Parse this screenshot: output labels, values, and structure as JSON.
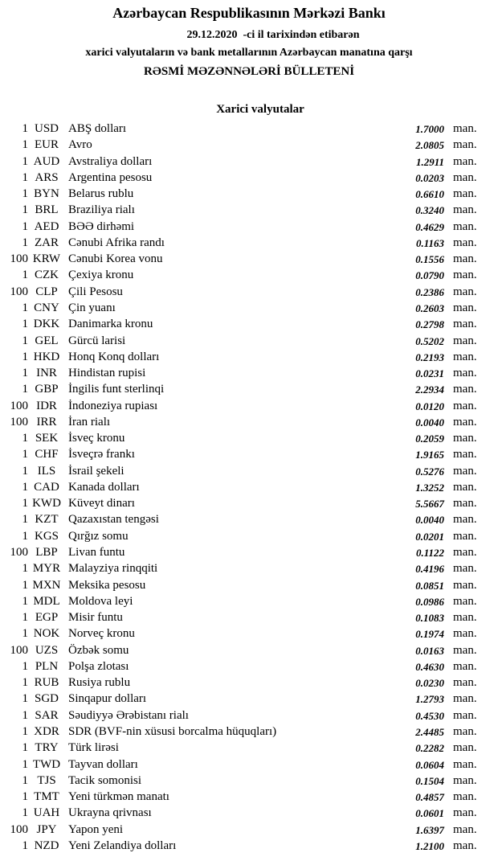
{
  "header": {
    "title": "Azərbaycan Respublikasının Mərkəzi Bankı",
    "date_line": "29.12.2020  -ci il tarixindən etibarən",
    "subtitle": "xarici valyutaların və bank metallarının Azərbaycan manatına qarşı",
    "bulletin": "RƏSMİ MƏZƏNNƏLƏRİ BÜLLETENİ"
  },
  "section": "Xarici valyutalar",
  "rows": [
    [
      "1",
      "USD",
      "ABŞ dolları",
      "1.7000",
      "man."
    ],
    [
      "1",
      "EUR",
      "Avro",
      "2.0805",
      "man."
    ],
    [
      "1",
      "AUD",
      "Avstraliya dolları",
      "1.2911",
      "man."
    ],
    [
      "1",
      "ARS",
      "Argentina pesosu",
      "0.0203",
      "man."
    ],
    [
      "1",
      "BYN",
      "Belarus rublu",
      "0.6610",
      "man."
    ],
    [
      "1",
      "BRL",
      "Braziliya rialı",
      "0.3240",
      "man."
    ],
    [
      "1",
      "AED",
      "BƏƏ dirhəmi",
      "0.4629",
      "man."
    ],
    [
      "1",
      "ZAR",
      "Cənubi Afrika randı",
      "0.1163",
      "man."
    ],
    [
      "100",
      "KRW",
      "Cənubi Korea vonu",
      "0.1556",
      "man."
    ],
    [
      "1",
      "CZK",
      "Çexiya kronu",
      "0.0790",
      "man."
    ],
    [
      "100",
      "CLP",
      "Çili Pesosu",
      "0.2386",
      "man."
    ],
    [
      "1",
      "CNY",
      "Çin yuanı",
      "0.2603",
      "man."
    ],
    [
      "1",
      "DKK",
      "Danimarka kronu",
      "0.2798",
      "man."
    ],
    [
      "1",
      "GEL",
      "Gürcü larisi",
      "0.5202",
      "man."
    ],
    [
      "1",
      "HKD",
      "Honq Konq dolları",
      "0.2193",
      "man."
    ],
    [
      "1",
      "INR",
      "Hindistan rupisi",
      "0.0231",
      "man."
    ],
    [
      "1",
      "GBP",
      "İngilis funt sterlinqi",
      "2.2934",
      "man."
    ],
    [
      "100",
      "IDR",
      "İndoneziya rupiası",
      "0.0120",
      "man."
    ],
    [
      "100",
      "IRR",
      "İran rialı",
      "0.0040",
      "man."
    ],
    [
      "1",
      "SEK",
      "İsveç kronu",
      "0.2059",
      "man."
    ],
    [
      "1",
      "CHF",
      "İsveçrə frankı",
      "1.9165",
      "man."
    ],
    [
      "1",
      "ILS",
      "İsrail şekeli",
      "0.5276",
      "man."
    ],
    [
      "1",
      "CAD",
      "Kanada dolları",
      "1.3252",
      "man."
    ],
    [
      "1",
      "KWD",
      "Küveyt dinarı",
      "5.5667",
      "man."
    ],
    [
      "1",
      "KZT",
      "Qazaxıstan tengəsi",
      "0.0040",
      "man."
    ],
    [
      "1",
      "KGS",
      "Qırğız somu",
      "0.0201",
      "man."
    ],
    [
      "100",
      "LBP",
      "Livan funtu",
      "0.1122",
      "man."
    ],
    [
      "1",
      "MYR",
      "Malayziya rinqqiti",
      "0.4196",
      "man."
    ],
    [
      "1",
      "MXN",
      "Meksika pesosu",
      "0.0851",
      "man."
    ],
    [
      "1",
      "MDL",
      "Moldova leyi",
      "0.0986",
      "man."
    ],
    [
      "1",
      "EGP",
      "Misir funtu",
      "0.1083",
      "man."
    ],
    [
      "1",
      "NOK",
      "Norveç kronu",
      "0.1974",
      "man."
    ],
    [
      "100",
      "UZS",
      "Özbək somu",
      "0.0163",
      "man."
    ],
    [
      "1",
      "PLN",
      "Polşa zlotası",
      "0.4630",
      "man."
    ],
    [
      "1",
      "RUB",
      "Rusiya rublu",
      "0.0230",
      "man."
    ],
    [
      "1",
      "SGD",
      "Sinqapur dolları",
      "1.2793",
      "man."
    ],
    [
      "1",
      "SAR",
      "Səudiyyə Ərəbistanı rialı",
      "0.4530",
      "man."
    ],
    [
      "1",
      "XDR",
      "SDR (BVF-nin xüsusi borcalma hüquqları)",
      "2.4485",
      "man."
    ],
    [
      "1",
      "TRY",
      "Türk lirəsi",
      "0.2282",
      "man."
    ],
    [
      "1",
      "TWD",
      "Tayvan dolları",
      "0.0604",
      "man."
    ],
    [
      "1",
      "TJS",
      "Tacik somonisi",
      "0.1504",
      "man."
    ],
    [
      "1",
      "TMT",
      "Yeni türkmən manatı",
      "0.4857",
      "man."
    ],
    [
      "1",
      "UAH",
      "Ukrayna qrivnası",
      "0.0601",
      "man."
    ],
    [
      "100",
      "JPY",
      "Yapon yeni",
      "1.6397",
      "man."
    ],
    [
      "1",
      "NZD",
      "Yeni Zelandiya dolları",
      "1.2100",
      "man."
    ]
  ]
}
